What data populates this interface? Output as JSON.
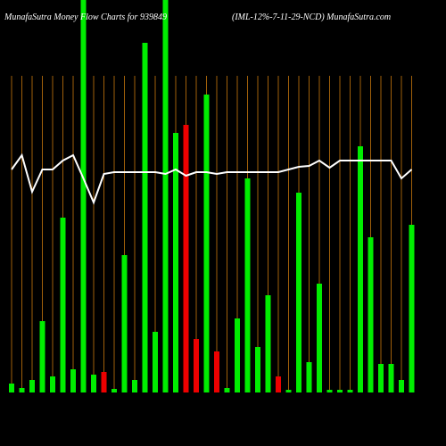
{
  "chart_data": {
    "type": "bar",
    "title": "MunafaSutra  Money Flow  Charts for 939849",
    "subtitle": "(IML-12%-7-11-29-NCD) MunafaSutra.com",
    "categories": [
      null,
      null,
      null,
      null,
      null,
      null,
      null,
      null,
      null,
      null,
      null,
      null,
      null,
      null,
      null,
      null,
      null,
      null,
      null,
      null,
      null,
      null,
      null,
      null,
      null,
      null,
      null,
      null,
      null,
      null,
      null,
      null,
      null,
      null,
      null,
      null,
      null,
      null,
      null,
      null
    ],
    "ylim": [
      0,
      440
    ],
    "series": [
      {
        "type": "bar",
        "values": [
          10,
          5,
          14,
          80,
          18,
          196,
          26,
          460,
          20,
          23,
          4,
          154,
          14,
          392,
          68,
          460,
          291,
          300,
          60,
          334,
          46,
          5,
          83,
          240,
          51,
          109,
          18,
          3,
          224,
          34,
          122,
          3,
          3,
          3,
          276,
          174,
          32,
          32,
          14,
          188
        ],
        "colors": [
          "#00ee00",
          "#00ee00",
          "#00ee00",
          "#00ee00",
          "#00ee00",
          "#00ee00",
          "#00ee00",
          "#00ee00",
          "#00ee00",
          "#ee0000",
          "#00ee00",
          "#00ee00",
          "#00ee00",
          "#00ee00",
          "#00ee00",
          "#00ee00",
          "#00ee00",
          "#ee0000",
          "#ee0000",
          "#00ee00",
          "#ee0000",
          "#00ee00",
          "#00ee00",
          "#00ee00",
          "#00ee00",
          "#00ee00",
          "#ee0000",
          "#00ee00",
          "#00ee00",
          "#00ee00",
          "#00ee00",
          "#00ee00",
          "#00ee00",
          "#00ee00",
          "#00ee00",
          "#00ee00",
          "#00ee00",
          "#00ee00",
          "#00ee00",
          "#00ee00"
        ]
      },
      {
        "type": "line",
        "color": "#ffffff",
        "values": [
          250,
          266,
          225,
          250,
          250,
          260,
          266,
          240,
          213,
          245,
          247,
          247,
          247,
          247,
          247,
          245,
          250,
          243,
          247,
          247,
          245,
          247,
          247,
          247,
          247,
          247,
          247,
          250,
          253,
          254,
          260,
          252,
          260,
          260,
          260,
          260,
          260,
          260,
          240,
          250
        ]
      }
    ],
    "vgrid_color": "#a0600a"
  }
}
